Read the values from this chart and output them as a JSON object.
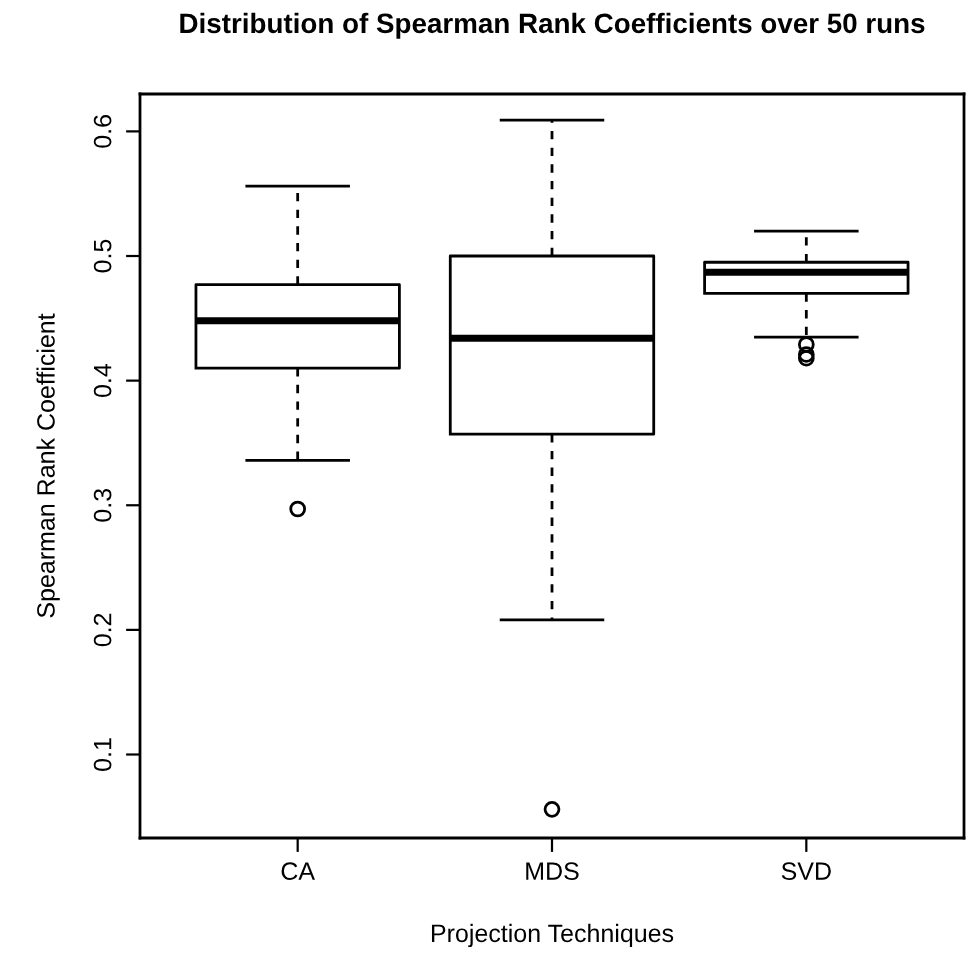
{
  "chart_data": {
    "type": "box",
    "title": "Distribution of Spearman Rank Coefficients over 50 runs",
    "xlabel": "Projection Techniques",
    "ylabel": "Spearman Rank Coefficient",
    "categories": [
      "CA",
      "MDS",
      "SVD"
    ],
    "boxes": [
      {
        "low": 0.336,
        "q1": 0.41,
        "median": 0.448,
        "q3": 0.477,
        "high": 0.556,
        "outliers": [
          0.297
        ]
      },
      {
        "low": 0.208,
        "q1": 0.357,
        "median": 0.434,
        "q3": 0.5,
        "high": 0.609,
        "outliers": [
          0.056
        ]
      },
      {
        "low": 0.435,
        "q1": 0.47,
        "median": 0.487,
        "q3": 0.495,
        "high": 0.52,
        "outliers": [
          0.429,
          0.421,
          0.418
        ]
      }
    ],
    "ylim": [
      0.033,
      0.63
    ],
    "yticks": [
      0.1,
      0.2,
      0.3,
      0.4,
      0.5,
      0.6
    ],
    "grid": false
  }
}
